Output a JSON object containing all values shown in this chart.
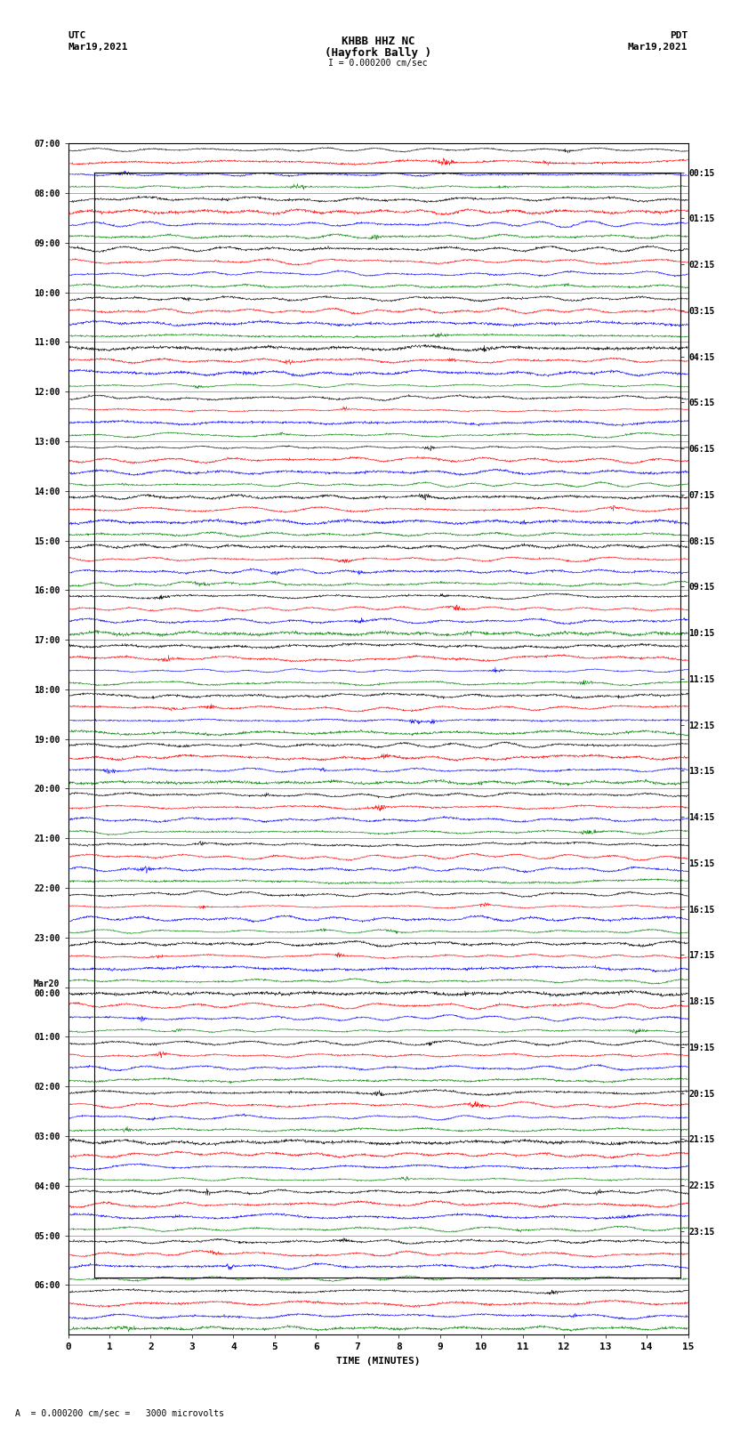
{
  "title_line1": "KHBB HHZ NC",
  "title_line2": "(Hayfork Bally )",
  "title_scale": "I = 0.000200 cm/sec",
  "left_header_line1": "UTC",
  "left_header_line2": "Mar19,2021",
  "right_header_line1": "PDT",
  "right_header_line2": "Mar19,2021",
  "xlabel": "TIME (MINUTES)",
  "footnote": "A  = 0.000200 cm/sec =   3000 microvolts",
  "utc_labels": [
    "07:00",
    "08:00",
    "09:00",
    "10:00",
    "11:00",
    "12:00",
    "13:00",
    "14:00",
    "15:00",
    "16:00",
    "17:00",
    "18:00",
    "19:00",
    "20:00",
    "21:00",
    "22:00",
    "23:00",
    "Mar20\n00:00",
    "01:00",
    "02:00",
    "03:00",
    "04:00",
    "05:00",
    "06:00"
  ],
  "pdt_labels": [
    "00:15",
    "01:15",
    "02:15",
    "03:15",
    "04:15",
    "05:15",
    "06:15",
    "07:15",
    "08:15",
    "09:15",
    "10:15",
    "11:15",
    "12:15",
    "13:15",
    "14:15",
    "15:15",
    "16:15",
    "17:15",
    "18:15",
    "19:15",
    "20:15",
    "21:15",
    "22:15",
    "23:15"
  ],
  "n_rows": 24,
  "traces_per_row": 4,
  "trace_colors": [
    "black",
    "red",
    "blue",
    "green"
  ],
  "bg_color": "white",
  "x_min": 0,
  "x_max": 15,
  "x_ticks": [
    0,
    1,
    2,
    3,
    4,
    5,
    6,
    7,
    8,
    9,
    10,
    11,
    12,
    13,
    14,
    15
  ],
  "seed": 42,
  "amplitude_scale": 0.35,
  "noise_scale": 0.12
}
